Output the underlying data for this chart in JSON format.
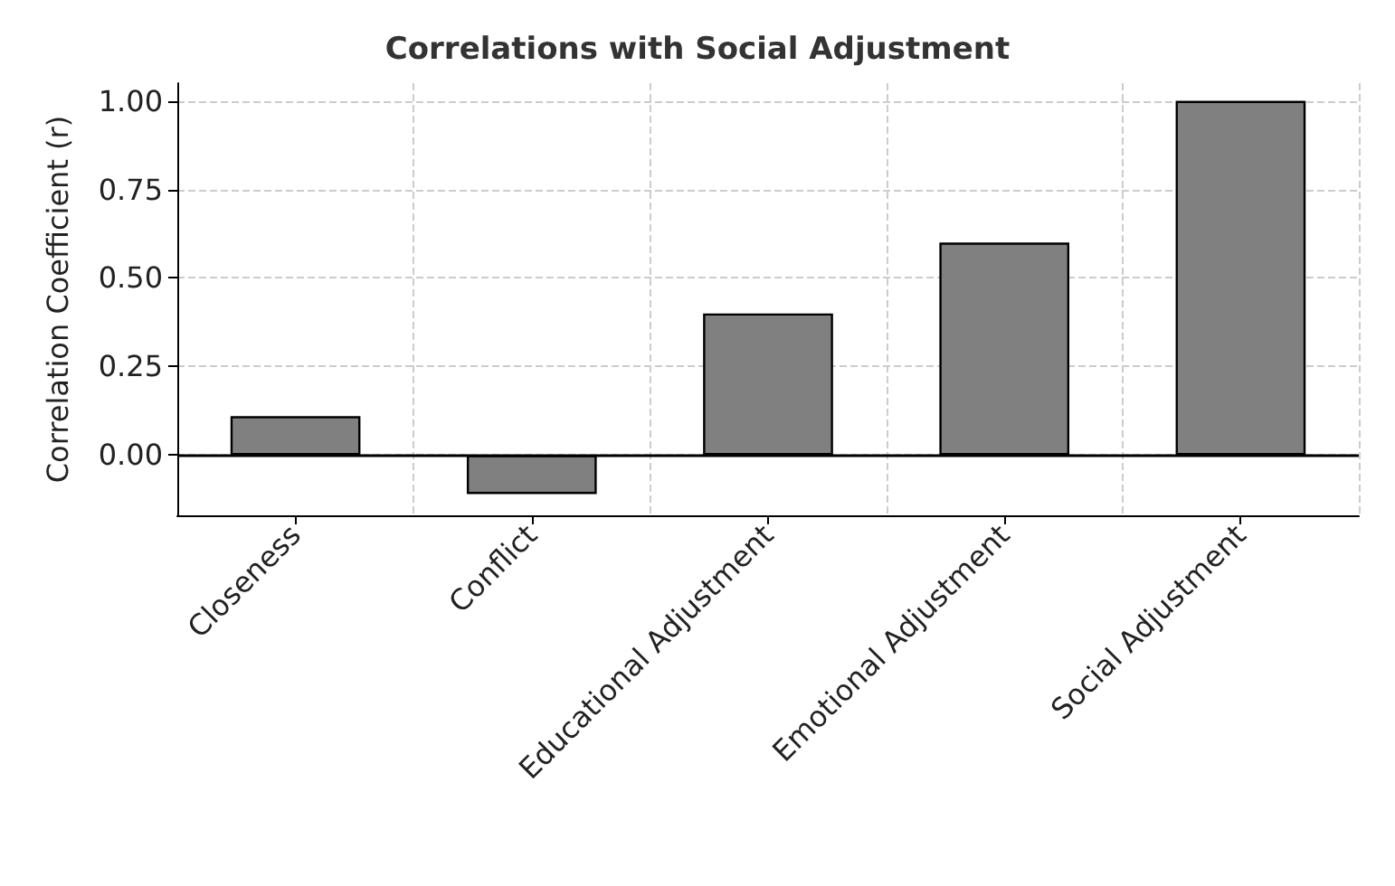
{
  "chart_data": {
    "type": "bar",
    "title": "Correlations with Social Adjustment",
    "ylabel": "Correlation Coefficient (r)",
    "categories": [
      "Closeness",
      "Conflict",
      "Educational Adjustment",
      "Emotional Adjustment",
      "Social Adjustment"
    ],
    "values": [
      0.11,
      -0.11,
      0.4,
      0.6,
      1.0
    ],
    "color": "#808080",
    "ylim": [
      -0.17,
      1.05
    ],
    "yticks": [
      {
        "value": 0,
        "label": "0.00"
      },
      0.25,
      {
        "value": 0.5,
        "label": "0.50"
      },
      0.75,
      {
        "value": 1,
        "label": "1.00"
      }
    ],
    "ref_lines": [
      {
        "axis": "y",
        "value": 0,
        "color": "#000000",
        "line_style": "solid"
      }
    ],
    "grid": true
  }
}
